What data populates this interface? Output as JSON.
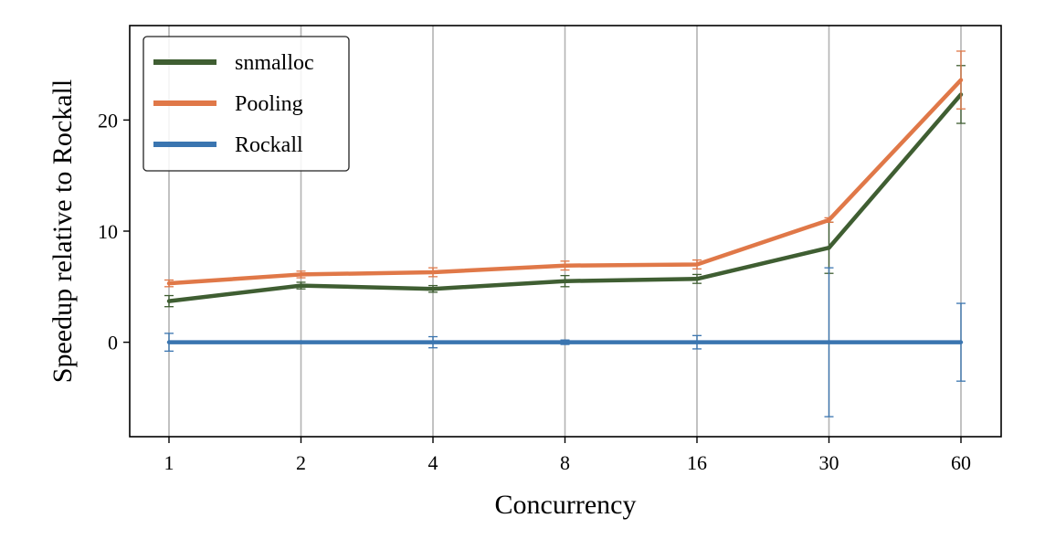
{
  "chart_data": {
    "type": "line",
    "xlabel": "Concurrency",
    "ylabel": "Speedup relative to Rockall",
    "categories": [
      "1",
      "2",
      "4",
      "8",
      "16",
      "30",
      "60"
    ],
    "y_ticks": [
      0,
      10,
      20
    ],
    "ylim": [
      -8.5,
      28.5
    ],
    "grid": {
      "x": true,
      "y": false
    },
    "legend_position": "top-left",
    "series": [
      {
        "name": "snmalloc",
        "color": "#3f5e32",
        "values": [
          3.7,
          5.1,
          4.8,
          5.5,
          5.7,
          8.5,
          22.3
        ],
        "err": [
          0.5,
          0.3,
          0.3,
          0.5,
          0.4,
          2.3,
          2.6
        ]
      },
      {
        "name": "Pooling",
        "color": "#e07848",
        "values": [
          5.3,
          6.1,
          6.3,
          6.9,
          7.0,
          11.0,
          23.6
        ],
        "err": [
          0.3,
          0.3,
          0.4,
          0.4,
          0.4,
          0.2,
          2.6
        ]
      },
      {
        "name": "Rockall",
        "color": "#3a75b0",
        "values": [
          0,
          0,
          0,
          0,
          0,
          0,
          0
        ],
        "err": [
          0.8,
          0.1,
          0.5,
          0.2,
          0.6,
          6.7,
          3.5
        ]
      }
    ]
  }
}
